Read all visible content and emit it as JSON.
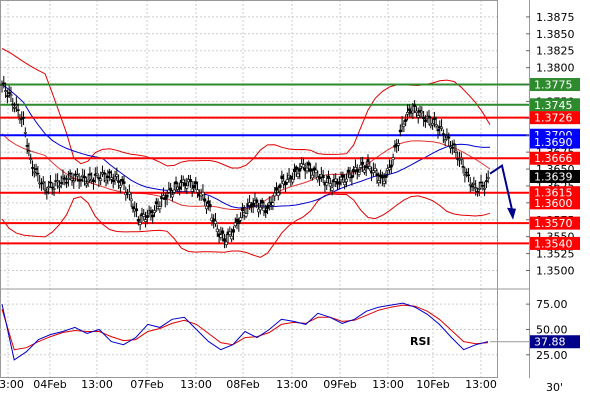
{
  "chart_data": [
    {
      "type": "line",
      "subtype": "candlestick",
      "timeframe_label": "30'",
      "ylim": [
        1.348,
        1.39
      ],
      "y_ticks": [
        "1.3500",
        "1.3525",
        "1.3550",
        "1.3575",
        "1.3600",
        "1.3625",
        "1.3650",
        "1.3675",
        "1.3700",
        "1.3725",
        "1.3750",
        "1.3775",
        "1.3800",
        "1.3825",
        "1.3850",
        "1.3875"
      ],
      "x_ticks": [
        "13:00",
        "04Feb",
        "13:00",
        "07Feb",
        "13:00",
        "08Feb",
        "13:00",
        "09Feb",
        "13:00",
        "10Feb",
        "13:00"
      ],
      "grid": true,
      "price_series": [
        1.3775,
        1.376,
        1.374,
        1.372,
        1.366,
        1.364,
        1.362,
        1.3625,
        1.363,
        1.3635,
        1.3638,
        1.3636,
        1.3634,
        1.3638,
        1.364,
        1.3638,
        1.3636,
        1.3625,
        1.3605,
        1.3575,
        1.358,
        1.3585,
        1.36,
        1.3612,
        1.362,
        1.3628,
        1.363,
        1.3622,
        1.361,
        1.359,
        1.356,
        1.3545,
        1.3555,
        1.3575,
        1.359,
        1.36,
        1.3595,
        1.359,
        1.361,
        1.363,
        1.3635,
        1.3645,
        1.3655,
        1.3648,
        1.3642,
        1.3632,
        1.3628,
        1.3632,
        1.3637,
        1.3645,
        1.3652,
        1.3655,
        1.3645,
        1.3632,
        1.365,
        1.3685,
        1.372,
        1.3738,
        1.3735,
        1.3725,
        1.372,
        1.371,
        1.3695,
        1.368,
        1.366,
        1.3635,
        1.362,
        1.3625,
        1.3635
      ],
      "levels": [
        {
          "label": "1.3775",
          "value": 1.3775,
          "color": "#2d8a2d"
        },
        {
          "label": "1.3745",
          "value": 1.3745,
          "color": "#2d8a2d"
        },
        {
          "label": "1.3726",
          "value": 1.3726,
          "color": "#ff0000"
        },
        {
          "label": "1.3700",
          "value": 1.37,
          "color": "#0000ff"
        },
        {
          "label": "1.3690",
          "value": 1.369,
          "color": "#0000ff"
        },
        {
          "label": "1.3666",
          "value": 1.3666,
          "color": "#ff0000"
        },
        {
          "label": "1.3639",
          "value": 1.3639,
          "color": "#000000"
        },
        {
          "label": "1.3615",
          "value": 1.3615,
          "color": "#ff0000"
        },
        {
          "label": "1.3600",
          "value": 1.36,
          "color": "#ff0000"
        },
        {
          "label": "1.3570",
          "value": 1.357,
          "color": "#ff0000"
        },
        {
          "label": "1.3540",
          "value": 1.354,
          "color": "#ff0000"
        }
      ],
      "forecast_arrow": {
        "from": 1.3655,
        "to": 1.3575,
        "color": "#00008b"
      }
    },
    {
      "type": "line",
      "indicator_label": "RSI",
      "ylim": [
        10,
        85
      ],
      "y_ticks": [
        "25.00",
        "50.00",
        "75.00"
      ],
      "current_label": "37.88",
      "current_value": 37.88,
      "rsi_series": [
        75,
        20,
        28,
        40,
        45,
        48,
        52,
        46,
        50,
        38,
        35,
        42,
        55,
        52,
        60,
        62,
        50,
        38,
        30,
        35,
        48,
        42,
        50,
        60,
        58,
        55,
        66,
        62,
        56,
        60,
        68,
        72,
        74,
        76,
        72,
        65,
        55,
        42,
        30,
        35,
        38
      ],
      "rsi_signal": [
        70,
        30,
        32,
        38,
        43,
        47,
        49,
        48,
        48,
        43,
        39,
        40,
        48,
        51,
        56,
        59,
        55,
        46,
        37,
        35,
        42,
        43,
        47,
        55,
        57,
        56,
        62,
        62,
        58,
        59,
        64,
        69,
        72,
        74,
        73,
        68,
        60,
        49,
        38,
        36,
        37
      ]
    }
  ]
}
